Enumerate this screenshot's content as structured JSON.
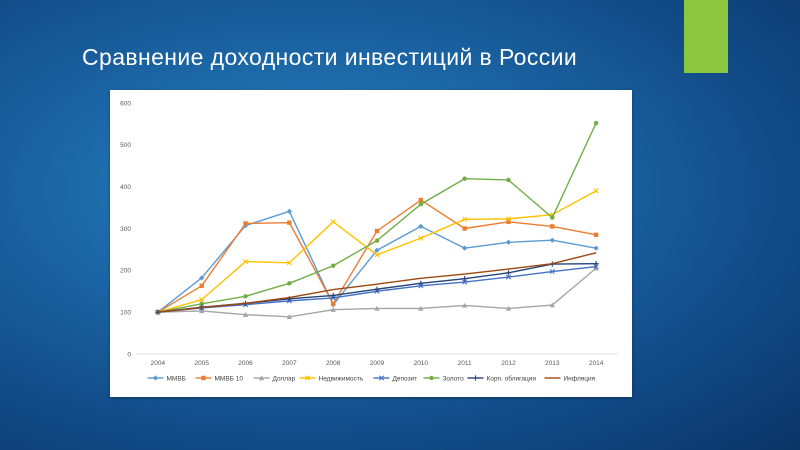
{
  "slide": {
    "title": "Сравнение доходности инвестиций в России",
    "accent_color": "#8cc63f"
  },
  "chart_data": {
    "type": "line",
    "title": "",
    "xlabel": "",
    "ylabel": "",
    "ylim": [
      0,
      600
    ],
    "yticks": [
      0,
      100,
      200,
      300,
      400,
      500,
      600
    ],
    "grid": false,
    "legend": "bottom",
    "categories": [
      "2004",
      "2005",
      "2006",
      "2007",
      "2008",
      "2009",
      "2010",
      "2011",
      "2012",
      "2013",
      "2014"
    ],
    "series": [
      {
        "name": "ММВБ",
        "color": "#5b9bd5",
        "marker": "diamond",
        "values": [
          100,
          182,
          307,
          341,
          118,
          248,
          305,
          253,
          267,
          272,
          253
        ]
      },
      {
        "name": "ММВБ 10",
        "color": "#ed7d31",
        "marker": "square",
        "values": [
          100,
          163,
          312,
          314,
          120,
          294,
          368,
          300,
          316,
          305,
          285
        ]
      },
      {
        "name": "Доллар",
        "color": "#a5a5a5",
        "marker": "triangle",
        "values": [
          100,
          103,
          94,
          89,
          106,
          109,
          109,
          116,
          109,
          117,
          205
        ]
      },
      {
        "name": "Недвижимость",
        "color": "#ffc000",
        "marker": "x",
        "values": [
          100,
          130,
          221,
          218,
          316,
          237,
          277,
          322,
          323,
          333,
          390
        ]
      },
      {
        "name": "Депозит",
        "color": "#4472c4",
        "marker": "x",
        "values": [
          100,
          110,
          118,
          127,
          134,
          150,
          163,
          172,
          184,
          197,
          209
        ]
      },
      {
        "name": "Золото",
        "color": "#70ad47",
        "marker": "circle",
        "values": [
          100,
          120,
          138,
          169,
          211,
          271,
          358,
          419,
          416,
          326,
          552
        ]
      },
      {
        "name": "Корп. облигации",
        "color": "#264478",
        "marker": "plus",
        "values": [
          100,
          112,
          121,
          132,
          140,
          155,
          169,
          180,
          194,
          215,
          216
        ]
      },
      {
        "name": "Инфляция",
        "color": "#9e480e",
        "marker": "none",
        "values": [
          100,
          111,
          121,
          135,
          154,
          167,
          181,
          191,
          203,
          216,
          242
        ]
      }
    ]
  }
}
